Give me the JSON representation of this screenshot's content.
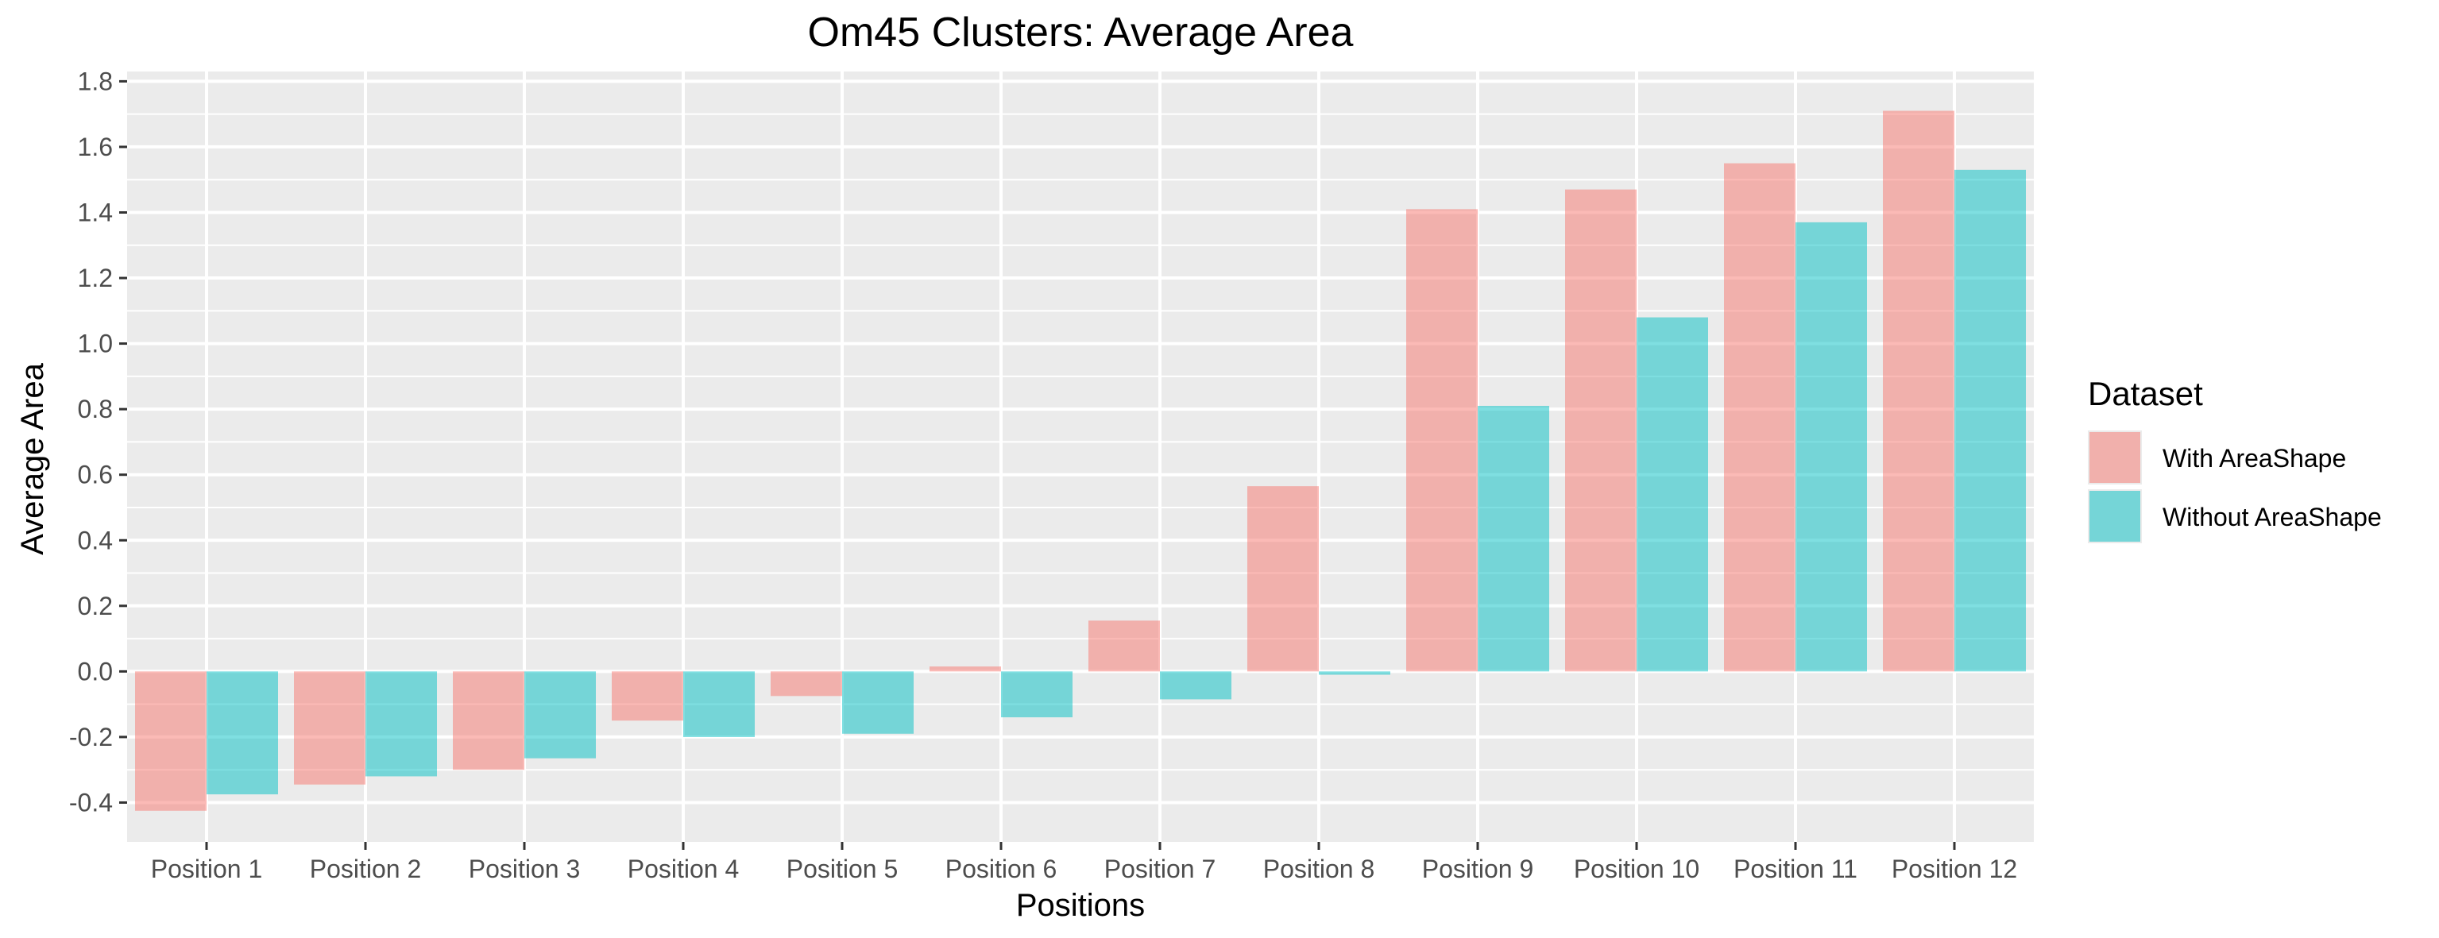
{
  "chart_data": {
    "type": "bar",
    "title": "Om45 Clusters: Average Area",
    "xlabel": "Positions",
    "ylabel": "Average Area",
    "categories": [
      "Position 1",
      "Position 2",
      "Position 3",
      "Position 4",
      "Position 5",
      "Position 6",
      "Position 7",
      "Position 8",
      "Position 9",
      "Position 10",
      "Position 11",
      "Position 12"
    ],
    "series": [
      {
        "name": "With AreaShape",
        "color": "#F8766D",
        "values": [
          -0.425,
          -0.345,
          -0.3,
          -0.15,
          -0.075,
          0.015,
          0.155,
          0.565,
          1.41,
          1.47,
          1.55,
          1.71
        ]
      },
      {
        "name": "Without AreaShape",
        "color": "#00BFC4",
        "values": [
          -0.375,
          -0.32,
          -0.265,
          -0.2,
          -0.19,
          -0.14,
          -0.085,
          -0.01,
          0.81,
          1.08,
          1.37,
          1.53
        ]
      }
    ],
    "ylim": [
      -0.52,
      1.83
    ],
    "yticks": [
      -0.4,
      -0.2,
      0.0,
      0.2,
      0.4,
      0.6,
      0.8,
      1.0,
      1.2,
      1.4,
      1.6,
      1.8
    ],
    "ytick_labels": [
      "-0.4",
      "-0.2",
      "0.0",
      "0.2",
      "0.4",
      "0.6",
      "0.8",
      "1.0",
      "1.2",
      "1.4",
      "1.6",
      "1.8"
    ],
    "legend": {
      "title": "Dataset",
      "position": "right"
    },
    "grid": true,
    "panel_background": "#EBEBEB",
    "bar_opacity": 0.5
  }
}
